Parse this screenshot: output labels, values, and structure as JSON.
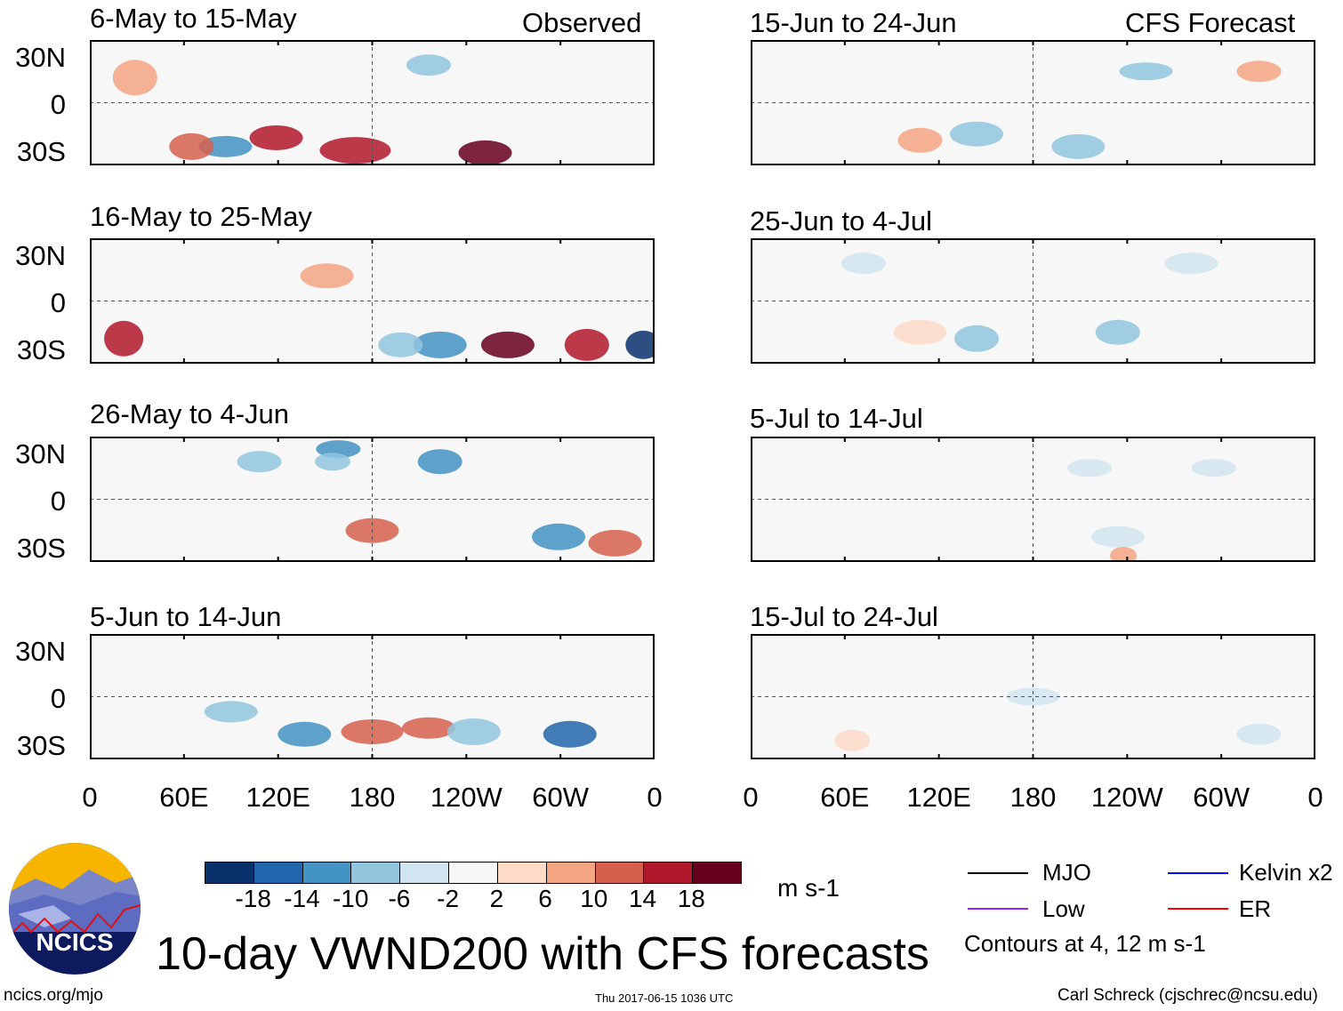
{
  "figure": {
    "title": "10-day VWND200 with CFS forecasts",
    "column_headers": {
      "observed": "Observed",
      "forecast": "CFS Forecast"
    },
    "lat_labels": [
      "30N",
      "0",
      "30S"
    ],
    "lon_labels": [
      "0",
      "60E",
      "120E",
      "180",
      "120W",
      "60W",
      "0"
    ],
    "observed_panels": [
      {
        "label": "6-May to 15-May"
      },
      {
        "label": "16-May to 25-May"
      },
      {
        "label": "26-May to 4-Jun"
      },
      {
        "label": "5-Jun to 14-Jun"
      }
    ],
    "forecast_panels": [
      {
        "label": "15-Jun to 24-Jun"
      },
      {
        "label": "25-Jun to 4-Jul"
      },
      {
        "label": "5-Jul to 14-Jul"
      },
      {
        "label": "15-Jul to 24-Jul"
      }
    ]
  },
  "colorbar": {
    "labels": [
      "-18",
      "-14",
      "-10",
      "-6",
      "-2",
      "2",
      "6",
      "10",
      "14",
      "18"
    ],
    "colors": [
      "#08306b",
      "#2166ac",
      "#4393c3",
      "#92c5de",
      "#d1e5f0",
      "#f7f7f7",
      "#fddbc7",
      "#f4a582",
      "#d6604d",
      "#b2182b",
      "#67001f"
    ],
    "units": "m s-1"
  },
  "legend": {
    "items": [
      {
        "label": "MJO",
        "color": "#000000"
      },
      {
        "label": "Kelvin x2",
        "color": "#0000ff"
      },
      {
        "label": "Low",
        "color": "#a020f0"
      },
      {
        "label": "ER",
        "color": "#ff0000"
      }
    ],
    "contours_note": "Contours at 4, 12 m s-1"
  },
  "logo": {
    "text": "NCICS"
  },
  "footer": {
    "url": "ncics.org/mjo",
    "timestamp": "Thu 2017-06-15 1036 UTC",
    "author": "Carl Schreck (cjschrec@ncsu.edu)"
  }
}
